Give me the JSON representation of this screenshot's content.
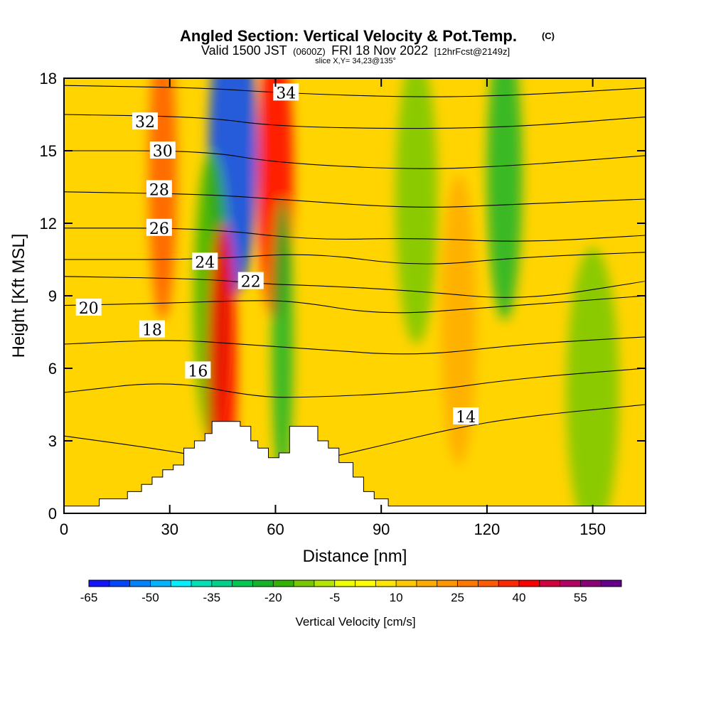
{
  "chart_data": {
    "type": "heatmap",
    "title": "Angled Section: Vertical Velocity & Pot.Temp.",
    "title_mark": "(C)",
    "subtitle_parts": [
      "Valid 1500 JST",
      "(0600Z)",
      "FRI 18 Nov 2022",
      "[12hrFcst@2149z]"
    ],
    "subtitle2": "slice X,Y= 34,23@135°",
    "xlabel": "Distance [nm]",
    "ylabel": "Height [Kft MSL]",
    "xlim": [
      0,
      165
    ],
    "ylim": [
      0,
      18
    ],
    "x_ticks": [
      0,
      30,
      60,
      90,
      120,
      150
    ],
    "y_ticks": [
      0,
      3,
      6,
      9,
      12,
      15,
      18
    ],
    "colorbar": {
      "label": "Vertical Velocity [cm/s]",
      "tick_labels": [
        "-65",
        "-50",
        "-35",
        "-20",
        "-5",
        "10",
        "25",
        "40",
        "55"
      ],
      "levels": [
        -65,
        -60,
        -55,
        -50,
        -45,
        -40,
        -35,
        -30,
        -25,
        -20,
        -15,
        -10,
        -5,
        0,
        5,
        10,
        15,
        20,
        25,
        30,
        35,
        40,
        45,
        50,
        55,
        60
      ],
      "colors": [
        "#1414ff",
        "#0046ff",
        "#0082ff",
        "#00b4ff",
        "#00f0ff",
        "#00e0b4",
        "#00d28c",
        "#00c850",
        "#14b428",
        "#32b400",
        "#78c800",
        "#b4e600",
        "#f0ff00",
        "#ffff00",
        "#ffe600",
        "#ffc800",
        "#ffaa00",
        "#ff9600",
        "#ff7800",
        "#ff5a00",
        "#ff2800",
        "#ff0000",
        "#d2003c",
        "#b40064",
        "#8c0078",
        "#64008c"
      ]
    },
    "velocity_features": [
      {
        "x": 48,
        "y": 15,
        "w": 14,
        "value": -60
      },
      {
        "x": 60,
        "y": 14,
        "w": 10,
        "value": 42
      },
      {
        "x": 42,
        "y": 9,
        "w": 10,
        "value": -20
      },
      {
        "x": 28,
        "y": 14,
        "w": 8,
        "value": 30
      },
      {
        "x": 62,
        "y": 7,
        "w": 6,
        "value": -22
      },
      {
        "x": 45,
        "y": 6,
        "w": 8,
        "value": 40
      },
      {
        "x": 100,
        "y": 13,
        "w": 12,
        "value": -15
      },
      {
        "x": 125,
        "y": 14,
        "w": 10,
        "value": -25
      },
      {
        "x": 150,
        "y": 5,
        "w": 15,
        "value": -15
      },
      {
        "x": 112,
        "y": 8,
        "w": 10,
        "value": 15
      }
    ],
    "terrain": [
      [
        0,
        0.3
      ],
      [
        5,
        0.3
      ],
      [
        10,
        0.6
      ],
      [
        15,
        0.6
      ],
      [
        18,
        0.9
      ],
      [
        22,
        1.2
      ],
      [
        25,
        1.5
      ],
      [
        28,
        1.8
      ],
      [
        31,
        2.0
      ],
      [
        34,
        2.7
      ],
      [
        37,
        3.0
      ],
      [
        40,
        3.3
      ],
      [
        42,
        3.8
      ],
      [
        48,
        3.8
      ],
      [
        50,
        3.6
      ],
      [
        53,
        3.0
      ],
      [
        55,
        2.7
      ],
      [
        58,
        2.3
      ],
      [
        61,
        2.5
      ],
      [
        64,
        3.6
      ],
      [
        70,
        3.6
      ],
      [
        72,
        3.0
      ],
      [
        75,
        2.7
      ],
      [
        78,
        2.1
      ],
      [
        82,
        1.5
      ],
      [
        85,
        0.9
      ],
      [
        88,
        0.6
      ],
      [
        92,
        0.3
      ],
      [
        165,
        0.3
      ]
    ],
    "contours": [
      {
        "level": 14,
        "label": "14",
        "label_pos": [
          114,
          4.0
        ],
        "points": [
          [
            0,
            3.2
          ],
          [
            30,
            2.6
          ],
          [
            60,
            1.8
          ],
          [
            90,
            2.8
          ],
          [
            110,
            3.5
          ],
          [
            130,
            4.0
          ],
          [
            165,
            4.5
          ]
        ]
      },
      {
        "level": 16,
        "label": "16",
        "label_pos": [
          38,
          5.9
        ],
        "points": [
          [
            0,
            5.0
          ],
          [
            30,
            5.5
          ],
          [
            55,
            4.8
          ],
          [
            70,
            4.8
          ],
          [
            100,
            5.0
          ],
          [
            130,
            5.6
          ],
          [
            165,
            6.0
          ]
        ]
      },
      {
        "level": 18,
        "label": "18",
        "label_pos": [
          25,
          7.6
        ],
        "points": [
          [
            0,
            7.0
          ],
          [
            30,
            7.2
          ],
          [
            50,
            7.0
          ],
          [
            70,
            6.8
          ],
          [
            100,
            6.5
          ],
          [
            130,
            7.0
          ],
          [
            165,
            7.3
          ]
        ]
      },
      {
        "level": 20,
        "label": "20",
        "label_pos": [
          7,
          8.5
        ],
        "points": [
          [
            0,
            8.6
          ],
          [
            30,
            8.7
          ],
          [
            50,
            8.8
          ],
          [
            65,
            8.8
          ],
          [
            90,
            8.2
          ],
          [
            120,
            8.5
          ],
          [
            165,
            9.0
          ]
        ]
      },
      {
        "level": 22,
        "label": "22",
        "label_pos": [
          53,
          9.6
        ],
        "points": [
          [
            0,
            9.8
          ],
          [
            40,
            9.7
          ],
          [
            55,
            9.5
          ],
          [
            75,
            9.4
          ],
          [
            100,
            9.2
          ],
          [
            130,
            8.8
          ],
          [
            165,
            9.6
          ]
        ]
      },
      {
        "level": 24,
        "label": "24",
        "label_pos": [
          40,
          10.4
        ],
        "points": [
          [
            0,
            10.5
          ],
          [
            40,
            10.5
          ],
          [
            70,
            10.8
          ],
          [
            100,
            10.2
          ],
          [
            130,
            10.6
          ],
          [
            165,
            10.8
          ]
        ]
      },
      {
        "level": 26,
        "label": "26",
        "label_pos": [
          27,
          11.8
        ],
        "points": [
          [
            0,
            11.8
          ],
          [
            40,
            11.8
          ],
          [
            70,
            11.3
          ],
          [
            100,
            11.4
          ],
          [
            130,
            11.2
          ],
          [
            165,
            11.5
          ]
        ]
      },
      {
        "level": 28,
        "label": "28",
        "label_pos": [
          27,
          13.4
        ],
        "points": [
          [
            0,
            13.3
          ],
          [
            40,
            13.2
          ],
          [
            60,
            13.0
          ],
          [
            100,
            12.6
          ],
          [
            130,
            12.8
          ],
          [
            165,
            13.0
          ]
        ]
      },
      {
        "level": 30,
        "label": "30",
        "label_pos": [
          28,
          15.0
        ],
        "points": [
          [
            0,
            15.0
          ],
          [
            40,
            15.0
          ],
          [
            60,
            14.5
          ],
          [
            100,
            14.2
          ],
          [
            130,
            14.4
          ],
          [
            165,
            14.8
          ]
        ]
      },
      {
        "level": 32,
        "label": "32",
        "label_pos": [
          23,
          16.2
        ],
        "points": [
          [
            0,
            16.5
          ],
          [
            40,
            16.4
          ],
          [
            60,
            16.0
          ],
          [
            100,
            15.9
          ],
          [
            130,
            16.0
          ],
          [
            165,
            16.4
          ]
        ]
      },
      {
        "level": 34,
        "label": "34",
        "label_pos": [
          63,
          17.4
        ],
        "points": [
          [
            0,
            17.7
          ],
          [
            40,
            17.6
          ],
          [
            60,
            17.4
          ],
          [
            100,
            17.2
          ],
          [
            130,
            17.3
          ],
          [
            165,
            17.6
          ]
        ]
      }
    ]
  }
}
